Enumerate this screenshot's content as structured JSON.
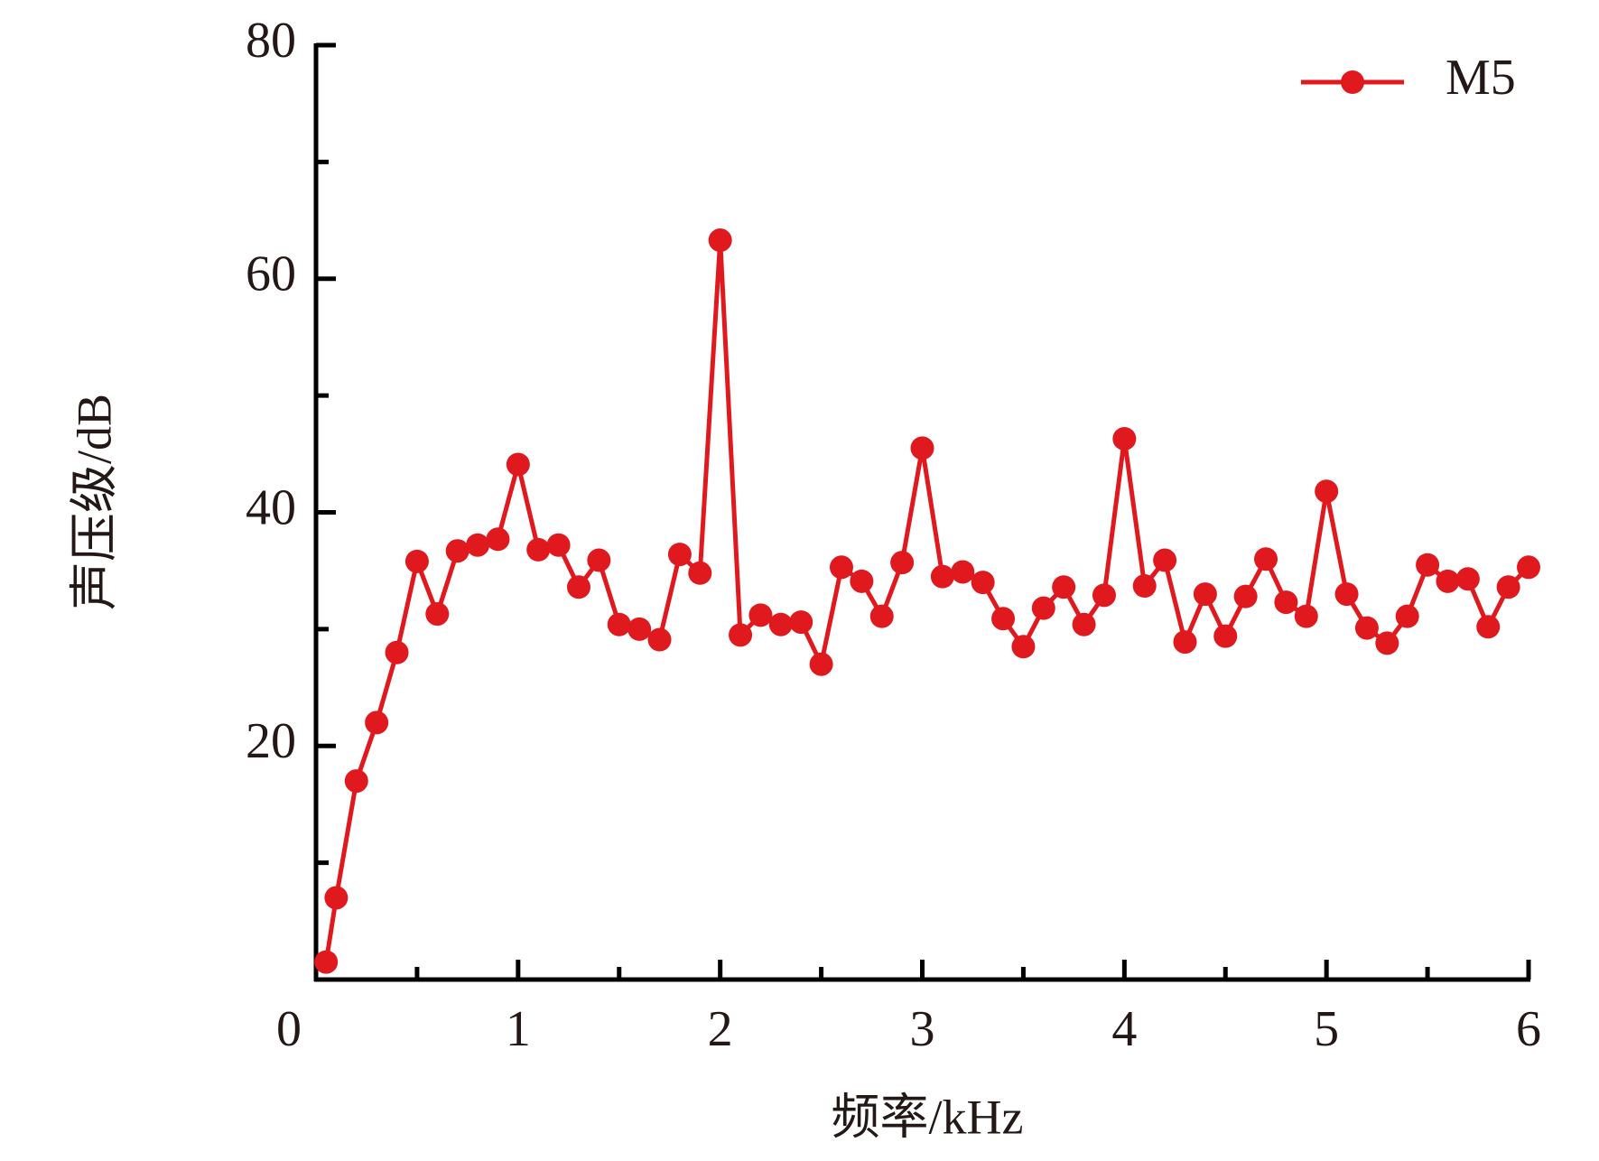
{
  "chart_data": {
    "type": "line",
    "x_label": "频率/kHz",
    "y_label": "声压级/dB",
    "x": [
      0.05,
      0.1,
      0.2,
      0.3,
      0.4,
      0.5,
      0.6,
      0.7,
      0.8,
      0.9,
      1.0,
      1.1,
      1.2,
      1.3,
      1.4,
      1.5,
      1.6,
      1.7,
      1.8,
      1.9,
      2.0,
      2.1,
      2.2,
      2.3,
      2.4,
      2.5,
      2.6,
      2.7,
      2.8,
      2.9,
      3.0,
      3.1,
      3.2,
      3.3,
      3.4,
      3.5,
      3.6,
      3.7,
      3.8,
      3.9,
      4.0,
      4.1,
      4.2,
      4.3,
      4.4,
      4.5,
      4.6,
      4.7,
      4.8,
      4.9,
      5.0,
      5.1,
      5.2,
      5.3,
      5.4,
      5.5,
      5.6,
      5.7,
      5.8,
      5.9,
      6.0
    ],
    "series": [
      {
        "name": "M5",
        "color": "#e0191f",
        "values": [
          1.5,
          7,
          17,
          22,
          28,
          35.8,
          31.3,
          36.7,
          37.2,
          37.7,
          44.1,
          36.8,
          37.2,
          33.6,
          35.9,
          30.4,
          30,
          29.1,
          36.4,
          34.8,
          63.3,
          29.5,
          31.2,
          30.4,
          30.6,
          27,
          35.3,
          34.1,
          31.1,
          35.7,
          45.5,
          34.5,
          34.9,
          34,
          30.9,
          28.5,
          31.8,
          33.6,
          30.4,
          32.9,
          46.3,
          33.7,
          35.9,
          28.9,
          33,
          29.4,
          32.8,
          36,
          32.3,
          31.1,
          41.8,
          33,
          30.1,
          28.8,
          31.1,
          35.5,
          34.1,
          34.3,
          30.2,
          33.6,
          35.3
        ]
      }
    ],
    "xlim": [
      0,
      6
    ],
    "xticks": [
      0,
      1,
      2,
      3,
      4,
      5,
      6
    ],
    "x_minor_ticks": [
      0.5,
      1.5,
      2.5,
      3.5,
      4.5,
      5.5
    ],
    "ylim": [
      0,
      80
    ],
    "yticks": [
      20,
      40,
      60,
      80
    ],
    "y_minor_ticks": [
      10,
      30,
      50,
      70
    ],
    "legend": "top-right",
    "grid": false
  }
}
